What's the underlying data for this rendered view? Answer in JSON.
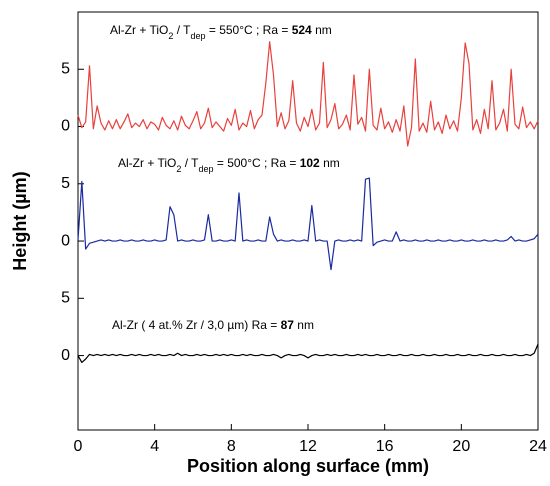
{
  "chart_data": {
    "type": "line",
    "x_label": "Position along surface (mm)",
    "y_label": "Height (µm)",
    "annotations": [
      [
        "Al-Zr + TiO",
        "2",
        " / T",
        "dep",
        " = 550°C ; Ra = ",
        "524",
        " nm"
      ],
      [
        "Al-Zr + TiO",
        "2",
        " / T",
        "dep",
        " = 500°C ; Ra = ",
        "102",
        " nm"
      ],
      [
        "Al-Zr ( 4 at.% Zr / 3,0 µm) Ra = ",
        "87",
        " nm"
      ]
    ],
    "xlim": [
      0,
      24
    ],
    "xticks": [
      0,
      4,
      8,
      12,
      16,
      20,
      24
    ],
    "ylim": [
      -6.5,
      30
    ],
    "yticks": [
      0,
      5,
      {
        "value": 10,
        "label": "0"
      },
      {
        "value": 15,
        "label": "5"
      },
      {
        "value": 20,
        "label": "0"
      },
      {
        "value": 25,
        "label": "5"
      }
    ],
    "x": [
      0,
      0.2,
      0.4,
      0.6,
      0.8,
      1,
      1.2,
      1.4,
      1.6,
      1.8,
      2,
      2.2,
      2.4,
      2.6,
      2.8,
      3,
      3.2,
      3.4,
      3.6,
      3.8,
      4,
      4.2,
      4.4,
      4.6,
      4.8,
      5,
      5.2,
      5.4,
      5.6,
      5.8,
      6,
      6.2,
      6.4,
      6.6,
      6.8,
      7,
      7.2,
      7.4,
      7.6,
      7.8,
      8,
      8.2,
      8.4,
      8.6,
      8.8,
      9,
      9.2,
      9.4,
      9.6,
      9.8,
      10,
      10.2,
      10.4,
      10.6,
      10.8,
      11,
      11.2,
      11.4,
      11.6,
      11.8,
      12,
      12.2,
      12.4,
      12.6,
      12.8,
      13,
      13.2,
      13.4,
      13.6,
      13.8,
      14,
      14.2,
      14.4,
      14.6,
      14.8,
      15,
      15.2,
      15.4,
      15.6,
      15.8,
      16,
      16.2,
      16.4,
      16.6,
      16.8,
      17,
      17.2,
      17.4,
      17.6,
      17.8,
      18,
      18.2,
      18.4,
      18.6,
      18.8,
      19,
      19.2,
      19.4,
      19.6,
      19.8,
      20,
      20.2,
      20.4,
      20.6,
      20.8,
      21,
      21.2,
      21.4,
      21.6,
      21.8,
      22,
      22.2,
      22.4,
      22.6,
      22.8,
      23,
      23.2,
      23.4,
      23.6,
      23.8,
      24
    ],
    "series": [
      {
        "color": "#e8403c",
        "values": [
          21.0,
          19.9,
          20.4,
          25.3,
          19.8,
          21.8,
          20.3,
          19.7,
          20.5,
          19.8,
          20.6,
          19.8,
          20.4,
          21.1,
          19.9,
          20.3,
          20.0,
          20.6,
          19.8,
          20.4,
          20.2,
          19.7,
          20.8,
          20.1,
          19.8,
          20.5,
          19.7,
          20.9,
          20.1,
          19.8,
          20.5,
          21.3,
          19.8,
          20.3,
          21.6,
          19.9,
          20.4,
          20.0,
          19.6,
          20.7,
          20.1,
          21.5,
          19.7,
          20.3,
          20.0,
          21.4,
          19.8,
          20.6,
          21.0,
          23.8,
          27.4,
          24.5,
          20.0,
          21.2,
          19.8,
          20.5,
          24.0,
          20.3,
          19.6,
          20.8,
          20.0,
          21.5,
          19.7,
          20.3,
          25.6,
          19.9,
          20.6,
          22.0,
          19.8,
          20.2,
          21.0,
          19.7,
          24.5,
          20.2,
          20.8,
          19.6,
          25.0,
          20.1,
          19.7,
          21.6,
          19.8,
          20.4,
          19.5,
          20.6,
          19.6,
          21.8,
          18.3,
          19.9,
          25.9,
          19.6,
          20.3,
          19.5,
          22.2,
          19.7,
          20.4,
          19.4,
          21.0,
          19.8,
          20.5,
          19.6,
          22.5,
          27.3,
          25.5,
          19.7,
          20.6,
          19.4,
          21.5,
          19.8,
          24.0,
          19.7,
          20.3,
          21.5,
          19.6,
          25.0,
          20.2,
          19.8,
          21.7,
          19.9,
          20.4,
          19.8,
          20.5
        ]
      },
      {
        "color": "#1a2aa0",
        "values": [
          10.1,
          15.2,
          9.3,
          9.8,
          9.9,
          10.0,
          10.1,
          10.0,
          10.1,
          10.0,
          10.0,
          10.1,
          10.0,
          10.0,
          10.1,
          10.0,
          10.0,
          10.1,
          10.0,
          10.0,
          10.1,
          10.0,
          10.0,
          10.1,
          13.0,
          12.3,
          10.0,
          10.1,
          10.0,
          10.0,
          10.1,
          10.0,
          10.0,
          10.1,
          12.3,
          10.0,
          10.0,
          10.1,
          10.0,
          10.0,
          10.1,
          10.0,
          14.2,
          10.0,
          10.1,
          10.0,
          10.0,
          10.1,
          10.0,
          10.0,
          12.1,
          10.6,
          10.0,
          10.1,
          10.0,
          10.0,
          10.1,
          10.0,
          10.0,
          10.1,
          10.0,
          13.1,
          10.0,
          10.1,
          10.0,
          10.0,
          7.5,
          10.0,
          10.1,
          10.0,
          10.0,
          10.1,
          10.0,
          10.1,
          10.0,
          15.4,
          15.5,
          9.6,
          9.9,
          10.0,
          10.1,
          10.0,
          10.0,
          10.8,
          10.0,
          10.1,
          10.0,
          10.0,
          10.1,
          10.0,
          10.0,
          10.1,
          10.0,
          10.0,
          10.1,
          10.0,
          10.0,
          10.1,
          10.0,
          10.0,
          10.1,
          10.0,
          10.0,
          10.1,
          10.0,
          10.0,
          10.1,
          10.0,
          10.0,
          10.1,
          10.0,
          10.0,
          10.1,
          10.4,
          10.0,
          10.1,
          10.0,
          10.0,
          10.1,
          10.2,
          10.6
        ]
      },
      {
        "color": "#000000",
        "values": [
          0.0,
          -0.6,
          -0.3,
          0.1,
          0.0,
          0.1,
          0.0,
          0.1,
          0.0,
          0.1,
          0.0,
          0.1,
          0.0,
          0.0,
          0.1,
          0.0,
          0.1,
          0.0,
          0.0,
          0.1,
          0.0,
          0.1,
          0.0,
          0.0,
          0.1,
          0.0,
          0.2,
          0.0,
          0.1,
          0.0,
          0.0,
          0.1,
          0.0,
          0.1,
          0.0,
          0.0,
          0.1,
          0.0,
          0.1,
          0.0,
          0.1,
          0.0,
          0.0,
          0.1,
          0.0,
          0.1,
          0.0,
          0.0,
          0.1,
          0.0,
          0.0,
          0.1,
          0.0,
          -0.2,
          0.0,
          0.1,
          0.0,
          0.0,
          0.1,
          0.0,
          -0.2,
          0.0,
          0.1,
          0.0,
          0.0,
          0.1,
          0.0,
          0.1,
          0.0,
          0.0,
          0.1,
          0.0,
          0.0,
          0.1,
          0.0,
          0.1,
          0.0,
          0.0,
          0.1,
          0.0,
          0.0,
          0.1,
          0.0,
          0.0,
          0.1,
          0.0,
          0.0,
          0.1,
          0.0,
          0.0,
          0.1,
          0.0,
          0.0,
          0.1,
          0.0,
          0.0,
          0.1,
          0.0,
          0.0,
          0.1,
          0.0,
          0.0,
          0.1,
          0.0,
          0.0,
          0.1,
          0.0,
          0.0,
          0.1,
          0.0,
          0.0,
          0.1,
          0.0,
          0.0,
          0.1,
          0.0,
          0.0,
          0.1,
          0.0,
          0.2,
          1.0
        ]
      }
    ]
  }
}
